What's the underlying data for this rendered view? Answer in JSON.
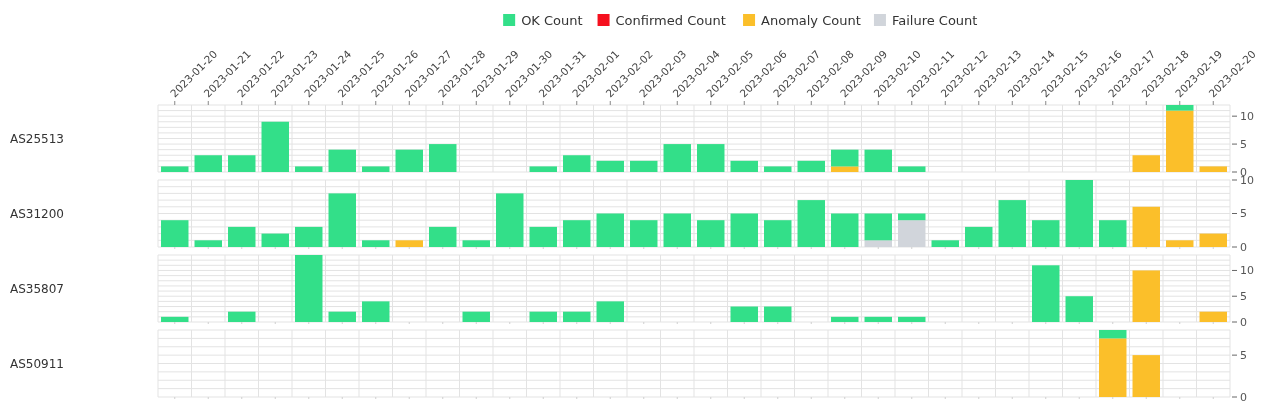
{
  "chart_data": [
    {
      "type": "bar",
      "stacked": true,
      "ylabel": "AS25513",
      "legend": "top",
      "grid": true,
      "categories": [
        "2023-01-20",
        "2023-01-21",
        "2023-01-22",
        "2023-01-23",
        "2023-01-24",
        "2023-01-25",
        "2023-01-26",
        "2023-01-27",
        "2023-01-28",
        "2023-01-29",
        "2023-01-30",
        "2023-01-31",
        "2023-02-01",
        "2023-02-02",
        "2023-02-03",
        "2023-02-04",
        "2023-02-05",
        "2023-02-06",
        "2023-02-07",
        "2023-02-08",
        "2023-02-09",
        "2023-02-10",
        "2023-02-11",
        "2023-02-12",
        "2023-02-13",
        "2023-02-14",
        "2023-02-15",
        "2023-02-16",
        "2023-02-17",
        "2023-02-18",
        "2023-02-19",
        "2023-02-20"
      ],
      "ylim": [
        0,
        12
      ],
      "yticks": [
        0,
        {
          "value": 1,
          "label": null
        },
        {
          "value": 2,
          "label": null
        },
        {
          "value": 3,
          "label": null
        },
        {
          "value": 4,
          "label": null
        },
        5,
        {
          "value": 6,
          "label": null
        },
        {
          "value": 7,
          "label": null
        },
        {
          "value": 8,
          "label": null
        },
        {
          "value": 9,
          "label": null
        },
        10,
        {
          "value": 11,
          "label": null
        },
        {
          "value": 12,
          "label": null
        }
      ],
      "series": [
        {
          "name": "Failure Count",
          "color": "#d1d5db",
          "values": [
            0,
            0,
            0,
            0,
            0,
            0,
            0,
            0,
            0,
            0,
            0,
            0,
            0,
            0,
            0,
            0,
            0,
            0,
            0,
            0,
            0,
            0,
            0,
            0,
            0,
            0,
            0,
            0,
            0,
            0,
            0,
            0
          ]
        },
        {
          "name": "Anomaly Count",
          "color": "#fbbf2a",
          "values": [
            0,
            0,
            0,
            0,
            0,
            0,
            0,
            0,
            0,
            0,
            0,
            0,
            0,
            0,
            0,
            0,
            0,
            0,
            0,
            0,
            1,
            0,
            0,
            0,
            0,
            0,
            0,
            0,
            0,
            3,
            11,
            1
          ]
        },
        {
          "name": "Confirmed Count",
          "color": "#f5101e",
          "values": [
            0,
            0,
            0,
            0,
            0,
            0,
            0,
            0,
            0,
            0,
            0,
            0,
            0,
            0,
            0,
            0,
            0,
            0,
            0,
            0,
            0,
            0,
            0,
            0,
            0,
            0,
            0,
            0,
            0,
            0,
            0,
            0
          ]
        },
        {
          "name": "OK Count",
          "color": "#33df89",
          "values": [
            1,
            3,
            3,
            9,
            1,
            4,
            1,
            4,
            5,
            0,
            0,
            1,
            3,
            2,
            2,
            5,
            5,
            2,
            1,
            2,
            3,
            4,
            1,
            0,
            0,
            0,
            0,
            0,
            0,
            0,
            1,
            0
          ]
        }
      ]
    },
    {
      "type": "bar",
      "stacked": true,
      "ylabel": "AS31200",
      "grid": true,
      "tick_labels": "y",
      "categories": [
        "2023-01-20",
        "2023-01-21",
        "2023-01-22",
        "2023-01-23",
        "2023-01-24",
        "2023-01-25",
        "2023-01-26",
        "2023-01-27",
        "2023-01-28",
        "2023-01-29",
        "2023-01-30",
        "2023-01-31",
        "2023-02-01",
        "2023-02-02",
        "2023-02-03",
        "2023-02-04",
        "2023-02-05",
        "2023-02-06",
        "2023-02-07",
        "2023-02-08",
        "2023-02-09",
        "2023-02-10",
        "2023-02-11",
        "2023-02-12",
        "2023-02-13",
        "2023-02-14",
        "2023-02-15",
        "2023-02-16",
        "2023-02-17",
        "2023-02-18",
        "2023-02-19",
        "2023-02-20"
      ],
      "ylim": [
        0,
        10
      ],
      "yticks": [
        0,
        {
          "value": 1,
          "label": null
        },
        {
          "value": 2,
          "label": null
        },
        {
          "value": 3,
          "label": null
        },
        {
          "value": 4,
          "label": null
        },
        5,
        {
          "value": 6,
          "label": null
        },
        {
          "value": 7,
          "label": null
        },
        {
          "value": 8,
          "label": null
        },
        {
          "value": 9,
          "label": null
        },
        10
      ],
      "series": [
        {
          "color": "#d1d5db",
          "values": [
            0,
            0,
            0,
            0,
            0,
            0,
            0,
            0,
            0,
            0,
            0,
            0,
            0,
            0,
            0,
            0,
            0,
            0,
            0,
            0,
            0,
            1,
            4,
            0,
            0,
            0,
            0,
            0,
            0,
            0,
            0,
            0
          ]
        },
        {
          "color": "#fbbf2a",
          "values": [
            0,
            0,
            0,
            0,
            0,
            0,
            0,
            1,
            0,
            0,
            0,
            0,
            0,
            0,
            0,
            0,
            0,
            0,
            0,
            0,
            0,
            0,
            0,
            0,
            0,
            0,
            0,
            0,
            0,
            6,
            1,
            2
          ]
        },
        {
          "color": "#f5101e",
          "values": [
            0,
            0,
            0,
            0,
            0,
            0,
            0,
            0,
            0,
            0,
            0,
            0,
            0,
            0,
            0,
            0,
            0,
            0,
            0,
            0,
            0,
            0,
            0,
            0,
            0,
            0,
            0,
            0,
            0,
            0,
            0,
            0
          ]
        },
        {
          "color": "#33df89",
          "values": [
            4,
            1,
            3,
            2,
            3,
            8,
            1,
            0,
            3,
            1,
            8,
            3,
            4,
            5,
            4,
            5,
            4,
            5,
            4,
            7,
            5,
            4,
            1,
            1,
            3,
            7,
            4,
            10,
            4,
            0,
            0,
            0
          ]
        }
      ]
    },
    {
      "type": "bar",
      "stacked": true,
      "ylabel": "AS35807",
      "grid": true,
      "tick_labels": "y",
      "categories": [
        "2023-01-20",
        "2023-01-21",
        "2023-01-22",
        "2023-01-23",
        "2023-01-24",
        "2023-01-25",
        "2023-01-26",
        "2023-01-27",
        "2023-01-28",
        "2023-01-29",
        "2023-01-30",
        "2023-01-31",
        "2023-02-01",
        "2023-02-02",
        "2023-02-03",
        "2023-02-04",
        "2023-02-05",
        "2023-02-06",
        "2023-02-07",
        "2023-02-08",
        "2023-02-09",
        "2023-02-10",
        "2023-02-11",
        "2023-02-12",
        "2023-02-13",
        "2023-02-14",
        "2023-02-15",
        "2023-02-16",
        "2023-02-17",
        "2023-02-18",
        "2023-02-19",
        "2023-02-20"
      ],
      "ylim": [
        0,
        13
      ],
      "yticks": [
        0,
        {
          "value": 1,
          "label": null
        },
        {
          "value": 2,
          "label": null
        },
        {
          "value": 3,
          "label": null
        },
        {
          "value": 4,
          "label": null
        },
        5,
        {
          "value": 6,
          "label": null
        },
        {
          "value": 7,
          "label": null
        },
        {
          "value": 8,
          "label": null
        },
        {
          "value": 9,
          "label": null
        },
        10,
        {
          "value": 11,
          "label": null
        },
        {
          "value": 12,
          "label": null
        },
        {
          "value": 13,
          "label": null
        }
      ],
      "series": [
        {
          "color": "#d1d5db",
          "values": [
            0,
            0,
            0,
            0,
            0,
            0,
            0,
            0,
            0,
            0,
            0,
            0,
            0,
            0,
            0,
            0,
            0,
            0,
            0,
            0,
            0,
            0,
            0,
            0,
            0,
            0,
            0,
            0,
            0,
            0,
            0,
            0
          ]
        },
        {
          "color": "#fbbf2a",
          "values": [
            0,
            0,
            0,
            0,
            0,
            0,
            0,
            0,
            0,
            0,
            0,
            0,
            0,
            0,
            0,
            0,
            0,
            0,
            0,
            0,
            0,
            0,
            0,
            0,
            0,
            0,
            0,
            0,
            0,
            10,
            0,
            2
          ]
        },
        {
          "color": "#f5101e",
          "values": [
            0,
            0,
            0,
            0,
            0,
            0,
            0,
            0,
            0,
            0,
            0,
            0,
            0,
            0,
            0,
            0,
            0,
            0,
            0,
            0,
            0,
            0,
            0,
            0,
            0,
            0,
            0,
            0,
            0,
            0,
            0,
            0
          ]
        },
        {
          "color": "#33df89",
          "values": [
            1,
            0,
            2,
            0,
            13,
            2,
            4,
            0,
            0,
            2,
            0,
            2,
            2,
            4,
            0,
            0,
            0,
            3,
            3,
            0,
            1,
            1,
            1,
            0,
            0,
            0,
            11,
            5,
            0,
            0,
            0,
            0
          ]
        }
      ]
    },
    {
      "type": "bar",
      "stacked": true,
      "ylabel": "AS50911",
      "grid": true,
      "tick_labels": "y",
      "categories": [
        "2023-01-20",
        "2023-01-21",
        "2023-01-22",
        "2023-01-23",
        "2023-01-24",
        "2023-01-25",
        "2023-01-26",
        "2023-01-27",
        "2023-01-28",
        "2023-01-29",
        "2023-01-30",
        "2023-01-31",
        "2023-02-01",
        "2023-02-02",
        "2023-02-03",
        "2023-02-04",
        "2023-02-05",
        "2023-02-06",
        "2023-02-07",
        "2023-02-08",
        "2023-02-09",
        "2023-02-10",
        "2023-02-11",
        "2023-02-12",
        "2023-02-13",
        "2023-02-14",
        "2023-02-15",
        "2023-02-16",
        "2023-02-17",
        "2023-02-18",
        "2023-02-19",
        "2023-02-20"
      ],
      "ylim": [
        0,
        8
      ],
      "yticks": [
        0,
        {
          "value": 1,
          "label": null
        },
        {
          "value": 2,
          "label": null
        },
        {
          "value": 3,
          "label": null
        },
        {
          "value": 4,
          "label": null
        },
        5,
        {
          "value": 6,
          "label": null
        },
        {
          "value": 7,
          "label": null
        },
        {
          "value": 8,
          "label": null
        }
      ],
      "series": [
        {
          "color": "#d1d5db",
          "values": [
            0,
            0,
            0,
            0,
            0,
            0,
            0,
            0,
            0,
            0,
            0,
            0,
            0,
            0,
            0,
            0,
            0,
            0,
            0,
            0,
            0,
            0,
            0,
            0,
            0,
            0,
            0,
            0,
            0,
            0,
            0,
            0
          ]
        },
        {
          "color": "#fbbf2a",
          "values": [
            0,
            0,
            0,
            0,
            0,
            0,
            0,
            0,
            0,
            0,
            0,
            0,
            0,
            0,
            0,
            0,
            0,
            0,
            0,
            0,
            0,
            0,
            0,
            0,
            0,
            0,
            0,
            0,
            7,
            5,
            0,
            0
          ]
        },
        {
          "color": "#f5101e",
          "values": [
            0,
            0,
            0,
            0,
            0,
            0,
            0,
            0,
            0,
            0,
            0,
            0,
            0,
            0,
            0,
            0,
            0,
            0,
            0,
            0,
            0,
            0,
            0,
            0,
            0,
            0,
            0,
            0,
            0,
            0,
            0,
            0
          ]
        },
        {
          "color": "#33df89",
          "values": [
            0,
            0,
            0,
            0,
            0,
            0,
            0,
            0,
            0,
            0,
            0,
            0,
            0,
            0,
            0,
            0,
            0,
            0,
            0,
            0,
            0,
            0,
            0,
            0,
            0,
            0,
            0,
            0,
            1,
            0,
            0,
            0
          ]
        }
      ]
    }
  ]
}
